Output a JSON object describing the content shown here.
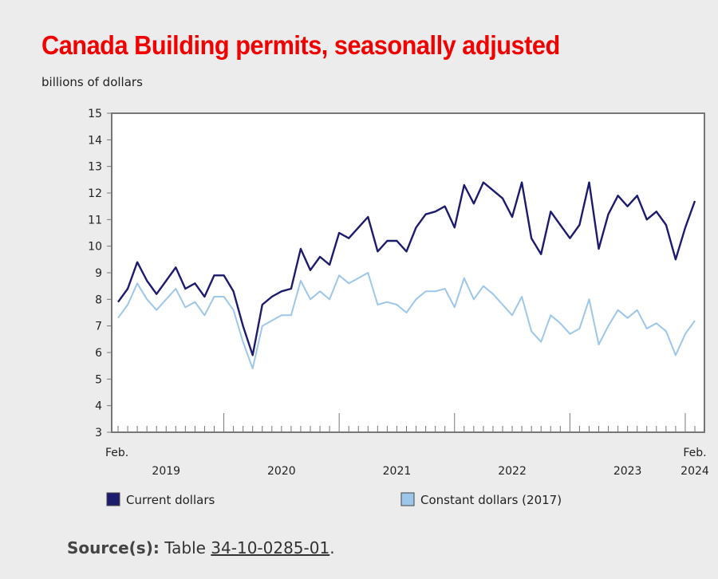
{
  "title": "Canada Building permits, seasonally adjusted",
  "unit_label": "billions of dollars",
  "source": {
    "label": "Source(s):",
    "prefix": "Table",
    "link_text": "34-10-0285-01",
    "suffix": "."
  },
  "colors": {
    "current": "#1c1b6e",
    "constant": "#9dc7ea",
    "plot_bg": "#ffffff",
    "axis": "#777777"
  },
  "chart_data": {
    "type": "line",
    "ylabel": "billions of dollars",
    "ylim": [
      3,
      15
    ],
    "yticks": [
      3,
      4,
      5,
      6,
      7,
      8,
      9,
      10,
      11,
      12,
      13,
      14,
      15
    ],
    "x_start": "2019-02",
    "x_end": "2024-02",
    "x_labels": [
      {
        "text": "Feb.",
        "month": "2019-02",
        "row": 1
      },
      {
        "text": "2019",
        "month": "2019-07",
        "row": 2
      },
      {
        "text": "2020",
        "month": "2020-07",
        "row": 2
      },
      {
        "text": "2021",
        "month": "2021-07",
        "row": 2
      },
      {
        "text": "2022",
        "month": "2022-07",
        "row": 2
      },
      {
        "text": "2023",
        "month": "2023-07",
        "row": 2
      },
      {
        "text": "Feb.",
        "month": "2024-02",
        "row": 1
      },
      {
        "text": "2024",
        "month": "2024-02",
        "row": 2
      }
    ],
    "year_boundaries": [
      "2020-01",
      "2021-01",
      "2022-01",
      "2023-01",
      "2024-01"
    ],
    "legend": "bottom",
    "series": [
      {
        "name": "Current dollars",
        "color": "#1c1b6e",
        "values": [
          7.9,
          8.4,
          9.4,
          8.7,
          8.2,
          8.7,
          9.2,
          8.4,
          8.6,
          8.1,
          8.9,
          8.9,
          8.3,
          7.0,
          5.9,
          7.8,
          8.1,
          8.3,
          8.4,
          9.9,
          9.1,
          9.6,
          9.3,
          10.5,
          10.3,
          10.7,
          11.1,
          9.8,
          10.2,
          10.2,
          9.8,
          10.7,
          11.2,
          11.3,
          11.5,
          10.7,
          12.3,
          11.6,
          12.4,
          12.1,
          11.8,
          11.1,
          12.4,
          10.3,
          9.7,
          11.3,
          10.8,
          10.3,
          10.8,
          12.4,
          9.9,
          11.2,
          11.9,
          11.5,
          11.9,
          11.0,
          11.3,
          10.8,
          9.5,
          10.7,
          11.7
        ]
      },
      {
        "name": "Constant dollars (2017)",
        "color": "#9dc7ea",
        "values": [
          7.3,
          7.8,
          8.6,
          8.0,
          7.6,
          8.0,
          8.4,
          7.7,
          7.9,
          7.4,
          8.1,
          8.1,
          7.6,
          6.4,
          5.4,
          7.0,
          7.2,
          7.4,
          7.4,
          8.7,
          8.0,
          8.3,
          8.0,
          8.9,
          8.6,
          8.8,
          9.0,
          7.8,
          7.9,
          7.8,
          7.5,
          8.0,
          8.3,
          8.3,
          8.4,
          7.7,
          8.8,
          8.0,
          8.5,
          8.2,
          7.8,
          7.4,
          8.1,
          6.8,
          6.4,
          7.4,
          7.1,
          6.7,
          6.9,
          8.0,
          6.3,
          7.0,
          7.6,
          7.3,
          7.6,
          6.9,
          7.1,
          6.8,
          5.9,
          6.7,
          7.2
        ]
      }
    ]
  }
}
